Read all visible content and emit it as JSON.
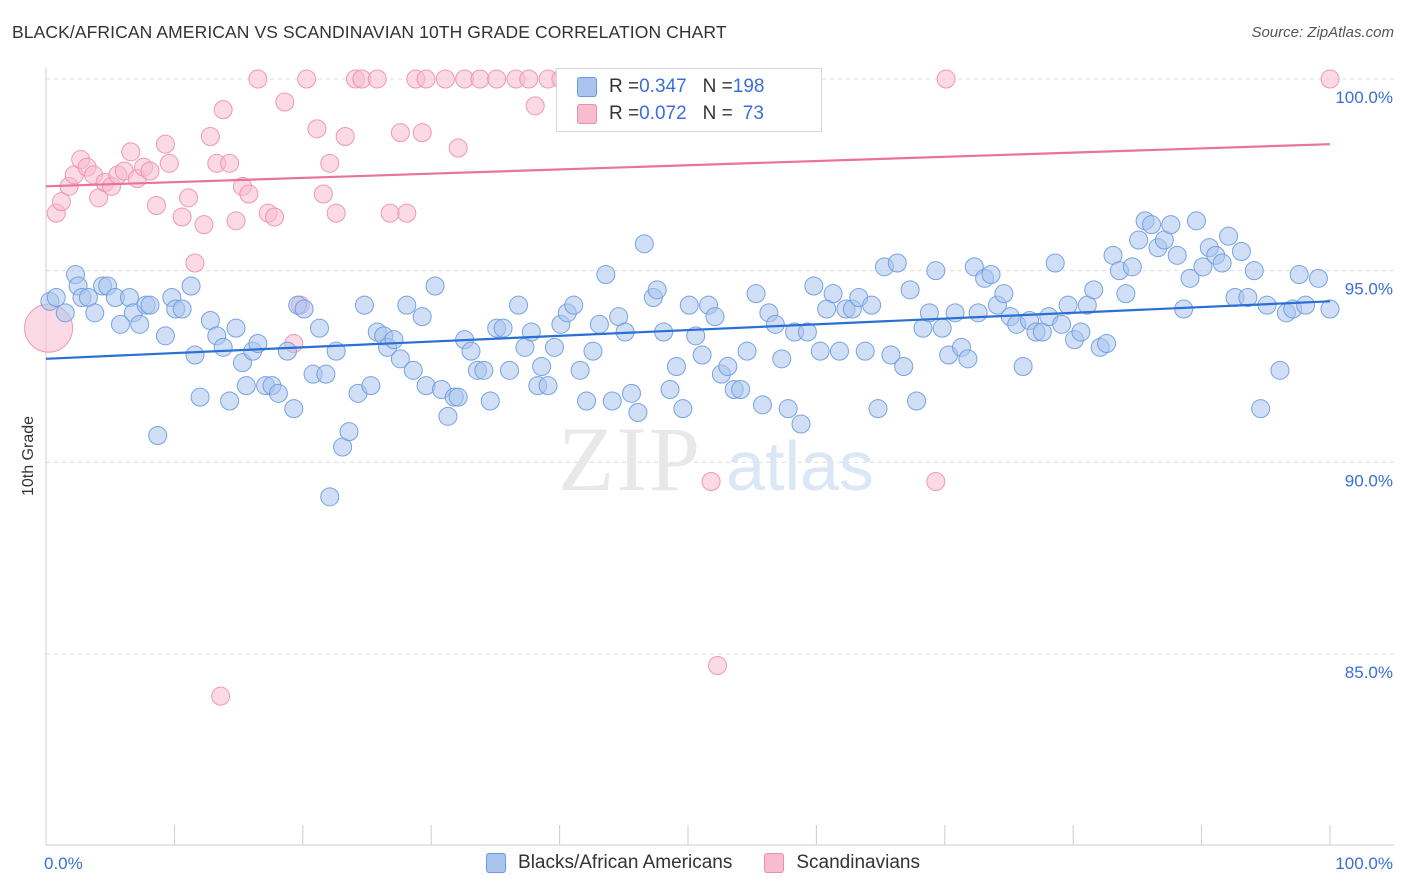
{
  "title": "BLACK/AFRICAN AMERICAN VS SCANDINAVIAN 10TH GRADE CORRELATION CHART",
  "source": "Source: ZipAtlas.com",
  "watermark": {
    "zip": "ZIP",
    "atlas": "atlas"
  },
  "legend": {
    "rows": [
      {
        "r_label": "R = ",
        "r_value": "0.347",
        "n_label": "N = ",
        "n_value": "198"
      },
      {
        "r_label": "R = ",
        "r_value": "0.072",
        "n_label": "N = ",
        "n_value": "73"
      }
    ]
  },
  "colors": {
    "blue_fill": "#a9c5ef",
    "blue_stroke": "#6a9ae0",
    "blue_line": "#2a6fd4",
    "pink_fill": "#f8bcd0",
    "pink_stroke": "#ec8fae",
    "pink_line": "#e8739c",
    "tick_label": "#3a6fd8"
  },
  "chart_data": {
    "type": "scatter",
    "title": "BLACK/AFRICAN AMERICAN VS SCANDINAVIAN 10TH GRADE CORRELATION CHART",
    "xlabel": "",
    "ylabel": "10th Grade",
    "xlim": [
      0,
      100
    ],
    "ylim": [
      80,
      101
    ],
    "x_tick_labels": [
      "0.0%",
      "100.0%"
    ],
    "y_ticks": [
      85,
      90,
      95,
      100
    ],
    "y_tick_labels": [
      "85.0%",
      "90.0%",
      "95.0%",
      "100.0%"
    ],
    "grid": true,
    "legend_position": "bottom",
    "series": [
      {
        "name": "Blacks/African Americans",
        "r": 0.347,
        "n": 198,
        "trend": {
          "x": [
            0,
            100
          ],
          "y": [
            92.7,
            94.2
          ]
        },
        "points": [
          [
            0.3,
            94.2
          ],
          [
            0.8,
            94.3
          ],
          [
            1.5,
            93.9
          ],
          [
            2.3,
            94.9
          ],
          [
            2.5,
            94.6
          ],
          [
            2.8,
            94.3
          ],
          [
            3.3,
            94.3
          ],
          [
            3.8,
            93.9
          ],
          [
            4.4,
            94.6
          ],
          [
            4.8,
            94.6
          ],
          [
            5.4,
            94.3
          ],
          [
            5.8,
            93.6
          ],
          [
            6.5,
            94.3
          ],
          [
            6.8,
            93.9
          ],
          [
            7.3,
            93.6
          ],
          [
            7.8,
            94.1
          ],
          [
            8.1,
            94.1
          ],
          [
            8.7,
            90.7
          ],
          [
            9.3,
            93.3
          ],
          [
            9.8,
            94.3
          ],
          [
            10.1,
            94.0
          ],
          [
            10.6,
            94.0
          ],
          [
            11.3,
            94.6
          ],
          [
            11.6,
            92.8
          ],
          [
            12.0,
            91.7
          ],
          [
            12.8,
            93.7
          ],
          [
            13.3,
            93.3
          ],
          [
            13.8,
            93.0
          ],
          [
            14.3,
            91.6
          ],
          [
            14.8,
            93.5
          ],
          [
            15.3,
            92.6
          ],
          [
            15.6,
            92.0
          ],
          [
            16.1,
            92.9
          ],
          [
            16.5,
            93.1
          ],
          [
            17.1,
            92.0
          ],
          [
            17.6,
            92.0
          ],
          [
            18.1,
            91.8
          ],
          [
            18.8,
            92.9
          ],
          [
            19.3,
            91.4
          ],
          [
            19.6,
            94.1
          ],
          [
            20.1,
            94.0
          ],
          [
            20.8,
            92.3
          ],
          [
            21.3,
            93.5
          ],
          [
            21.8,
            92.3
          ],
          [
            22.6,
            92.9
          ],
          [
            23.1,
            90.4
          ],
          [
            23.6,
            90.8
          ],
          [
            22.1,
            89.1
          ],
          [
            24.3,
            91.8
          ],
          [
            24.8,
            94.1
          ],
          [
            25.3,
            92.0
          ],
          [
            25.8,
            93.4
          ],
          [
            26.3,
            93.3
          ],
          [
            26.6,
            93.0
          ],
          [
            27.1,
            93.2
          ],
          [
            27.6,
            92.7
          ],
          [
            28.1,
            94.1
          ],
          [
            28.6,
            92.4
          ],
          [
            29.3,
            93.8
          ],
          [
            29.6,
            92.0
          ],
          [
            30.3,
            94.6
          ],
          [
            30.8,
            91.9
          ],
          [
            31.3,
            91.2
          ],
          [
            31.8,
            91.7
          ],
          [
            32.1,
            91.7
          ],
          [
            32.6,
            93.2
          ],
          [
            33.1,
            92.9
          ],
          [
            33.6,
            92.4
          ],
          [
            34.1,
            92.4
          ],
          [
            34.6,
            91.6
          ],
          [
            35.1,
            93.5
          ],
          [
            35.6,
            93.5
          ],
          [
            36.1,
            92.4
          ],
          [
            36.8,
            94.1
          ],
          [
            37.3,
            93.0
          ],
          [
            37.8,
            93.4
          ],
          [
            38.3,
            92.0
          ],
          [
            38.6,
            92.5
          ],
          [
            39.1,
            92.0
          ],
          [
            39.6,
            93.0
          ],
          [
            40.1,
            93.6
          ],
          [
            40.6,
            93.9
          ],
          [
            41.1,
            94.1
          ],
          [
            41.6,
            92.4
          ],
          [
            42.1,
            91.6
          ],
          [
            42.6,
            92.9
          ],
          [
            43.1,
            93.6
          ],
          [
            43.6,
            94.9
          ],
          [
            44.1,
            91.6
          ],
          [
            44.6,
            93.8
          ],
          [
            45.1,
            93.4
          ],
          [
            45.6,
            91.8
          ],
          [
            46.1,
            91.3
          ],
          [
            46.6,
            95.7
          ],
          [
            47.3,
            94.3
          ],
          [
            47.6,
            94.5
          ],
          [
            48.1,
            93.4
          ],
          [
            48.6,
            91.9
          ],
          [
            49.1,
            92.5
          ],
          [
            49.6,
            91.4
          ],
          [
            50.1,
            94.1
          ],
          [
            50.6,
            93.3
          ],
          [
            51.1,
            92.8
          ],
          [
            51.6,
            94.1
          ],
          [
            52.1,
            93.8
          ],
          [
            52.6,
            92.3
          ],
          [
            53.1,
            92.5
          ],
          [
            53.6,
            91.9
          ],
          [
            54.1,
            91.9
          ],
          [
            54.6,
            92.9
          ],
          [
            55.3,
            94.4
          ],
          [
            55.8,
            91.5
          ],
          [
            56.3,
            93.9
          ],
          [
            56.8,
            93.6
          ],
          [
            57.3,
            92.7
          ],
          [
            57.8,
            91.4
          ],
          [
            58.3,
            93.4
          ],
          [
            58.8,
            91.0
          ],
          [
            59.3,
            93.4
          ],
          [
            59.8,
            94.6
          ],
          [
            60.3,
            92.9
          ],
          [
            60.8,
            94.0
          ],
          [
            61.3,
            94.4
          ],
          [
            61.8,
            92.9
          ],
          [
            62.3,
            94.0
          ],
          [
            62.8,
            94.0
          ],
          [
            63.3,
            94.3
          ],
          [
            63.8,
            92.9
          ],
          [
            64.3,
            94.1
          ],
          [
            64.8,
            91.4
          ],
          [
            65.3,
            95.1
          ],
          [
            65.8,
            92.8
          ],
          [
            66.3,
            95.2
          ],
          [
            66.8,
            92.5
          ],
          [
            67.3,
            94.5
          ],
          [
            67.8,
            91.6
          ],
          [
            68.3,
            93.5
          ],
          [
            68.8,
            93.9
          ],
          [
            69.3,
            95.0
          ],
          [
            69.8,
            93.5
          ],
          [
            70.3,
            92.8
          ],
          [
            70.8,
            93.9
          ],
          [
            71.3,
            93.0
          ],
          [
            71.8,
            92.7
          ],
          [
            72.3,
            95.1
          ],
          [
            72.6,
            93.9
          ],
          [
            73.1,
            94.8
          ],
          [
            73.6,
            94.9
          ],
          [
            74.1,
            94.1
          ],
          [
            74.6,
            94.4
          ],
          [
            75.1,
            93.8
          ],
          [
            75.6,
            93.6
          ],
          [
            76.1,
            92.5
          ],
          [
            76.6,
            93.7
          ],
          [
            77.1,
            93.4
          ],
          [
            77.6,
            93.4
          ],
          [
            78.1,
            93.8
          ],
          [
            78.6,
            95.2
          ],
          [
            79.1,
            93.6
          ],
          [
            79.6,
            94.1
          ],
          [
            80.1,
            93.2
          ],
          [
            80.6,
            93.4
          ],
          [
            81.1,
            94.1
          ],
          [
            81.6,
            94.5
          ],
          [
            82.1,
            93.0
          ],
          [
            82.6,
            93.1
          ],
          [
            83.1,
            95.4
          ],
          [
            83.6,
            95.0
          ],
          [
            84.1,
            94.4
          ],
          [
            84.6,
            95.1
          ],
          [
            85.1,
            95.8
          ],
          [
            85.6,
            96.3
          ],
          [
            86.1,
            96.2
          ],
          [
            86.6,
            95.6
          ],
          [
            87.1,
            95.8
          ],
          [
            87.6,
            96.2
          ],
          [
            88.1,
            95.4
          ],
          [
            88.6,
            94.0
          ],
          [
            89.1,
            94.8
          ],
          [
            89.6,
            96.3
          ],
          [
            90.1,
            95.1
          ],
          [
            90.6,
            95.6
          ],
          [
            91.1,
            95.4
          ],
          [
            91.6,
            95.2
          ],
          [
            92.1,
            95.9
          ],
          [
            92.6,
            94.3
          ],
          [
            93.1,
            95.5
          ],
          [
            93.6,
            94.3
          ],
          [
            94.1,
            95.0
          ],
          [
            94.6,
            91.4
          ],
          [
            95.1,
            94.1
          ],
          [
            96.1,
            92.4
          ],
          [
            96.6,
            93.9
          ],
          [
            97.1,
            94.0
          ],
          [
            97.6,
            94.9
          ],
          [
            98.1,
            94.1
          ],
          [
            99.1,
            94.8
          ],
          [
            100.0,
            94.0
          ]
        ]
      },
      {
        "name": "Scandinavians",
        "r": 0.072,
        "n": 73,
        "trend": {
          "x": [
            0,
            100
          ],
          "y": [
            97.2,
            98.3
          ]
        },
        "points": [
          [
            0.2,
            93.5
          ],
          [
            0.8,
            96.5
          ],
          [
            1.2,
            96.8
          ],
          [
            1.8,
            97.2
          ],
          [
            2.2,
            97.5
          ],
          [
            2.7,
            97.9
          ],
          [
            3.2,
            97.7
          ],
          [
            3.7,
            97.5
          ],
          [
            4.1,
            96.9
          ],
          [
            4.6,
            97.3
          ],
          [
            5.1,
            97.2
          ],
          [
            5.6,
            97.5
          ],
          [
            6.1,
            97.6
          ],
          [
            6.6,
            98.1
          ],
          [
            7.1,
            97.4
          ],
          [
            7.6,
            97.7
          ],
          [
            8.1,
            97.6
          ],
          [
            8.6,
            96.7
          ],
          [
            9.3,
            98.3
          ],
          [
            9.6,
            97.8
          ],
          [
            10.6,
            96.4
          ],
          [
            11.1,
            96.9
          ],
          [
            11.6,
            95.2
          ],
          [
            12.3,
            96.2
          ],
          [
            12.8,
            98.5
          ],
          [
            13.3,
            97.8
          ],
          [
            13.8,
            99.2
          ],
          [
            14.3,
            97.8
          ],
          [
            14.8,
            96.3
          ],
          [
            15.3,
            97.2
          ],
          [
            15.8,
            97.0
          ],
          [
            16.5,
            100.0
          ],
          [
            17.3,
            96.5
          ],
          [
            17.8,
            96.4
          ],
          [
            18.6,
            99.4
          ],
          [
            19.3,
            93.1
          ],
          [
            19.8,
            94.1
          ],
          [
            20.3,
            100.0
          ],
          [
            21.1,
            98.7
          ],
          [
            21.6,
            97.0
          ],
          [
            22.1,
            97.8
          ],
          [
            22.6,
            96.5
          ],
          [
            23.3,
            98.5
          ],
          [
            24.1,
            100.0
          ],
          [
            24.6,
            100.0
          ],
          [
            25.8,
            100.0
          ],
          [
            26.8,
            96.5
          ],
          [
            27.6,
            98.6
          ],
          [
            28.1,
            96.5
          ],
          [
            28.8,
            100.0
          ],
          [
            29.3,
            98.6
          ],
          [
            29.6,
            100.0
          ],
          [
            31.1,
            100.0
          ],
          [
            32.1,
            98.2
          ],
          [
            32.6,
            100.0
          ],
          [
            33.8,
            100.0
          ],
          [
            35.1,
            100.0
          ],
          [
            36.6,
            100.0
          ],
          [
            37.6,
            100.0
          ],
          [
            38.1,
            99.3
          ],
          [
            39.1,
            100.0
          ],
          [
            40.1,
            100.0
          ],
          [
            41.1,
            100.0
          ],
          [
            42.1,
            100.0
          ],
          [
            43.1,
            100.0
          ],
          [
            44.6,
            100.0
          ],
          [
            45.6,
            100.0
          ],
          [
            51.8,
            89.5
          ],
          [
            52.3,
            84.7
          ],
          [
            70.1,
            100.0
          ],
          [
            13.6,
            83.9
          ],
          [
            69.3,
            89.5
          ],
          [
            100.0,
            100.0
          ]
        ]
      }
    ]
  }
}
